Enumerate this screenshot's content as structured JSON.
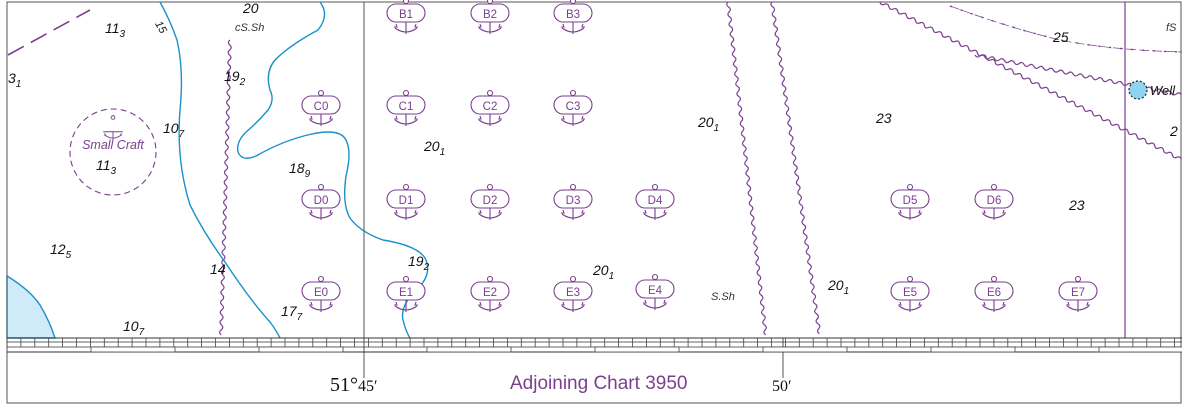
{
  "colors": {
    "water": "#ffffff",
    "shallow": "#cfeaf8",
    "depth_contour": "#1a92c9",
    "anchorage": "#7a3f8f",
    "well": "#8fd3f2"
  },
  "soundings": [
    {
      "main": "11",
      "sub": "3"
    },
    {
      "main": "3",
      "sub": "1"
    },
    {
      "main": "10",
      "sub": "7"
    },
    {
      "main": "11",
      "sub": "3"
    },
    {
      "main": "19",
      "sub": "2"
    },
    {
      "main": "18",
      "sub": "9"
    },
    {
      "main": "20",
      "sub": "1"
    },
    {
      "main": "20",
      "sub": "1"
    },
    {
      "main": "23",
      "sub": ""
    },
    {
      "main": "2",
      "sub": ""
    },
    {
      "main": "23",
      "sub": ""
    },
    {
      "main": "25",
      "sub": ""
    },
    {
      "main": "12",
      "sub": "5"
    },
    {
      "main": "14",
      "sub": ""
    },
    {
      "main": "19",
      "sub": "2"
    },
    {
      "main": "20",
      "sub": "1"
    },
    {
      "main": "20",
      "sub": "1"
    },
    {
      "main": "17",
      "sub": "7"
    },
    {
      "main": "10",
      "sub": "7"
    },
    {
      "main": "20",
      "sub": ""
    }
  ],
  "contour_labels": [
    "15"
  ],
  "bottom_labels": [
    "cS.Sh",
    "S.Sh",
    "fS"
  ],
  "small_craft_label": "Small Craft",
  "well_label": "Well",
  "anchor_berths": [
    "B1",
    "B2",
    "B3",
    "C0",
    "C1",
    "C2",
    "C3",
    "D0",
    "D1",
    "D2",
    "D3",
    "D4",
    "D5",
    "D6",
    "E0",
    "E1",
    "E2",
    "E3",
    "E4",
    "E5",
    "E6",
    "E7"
  ],
  "border": {
    "longitudes": [
      {
        "deg": "51°",
        "min": "45′"
      },
      {
        "deg": "",
        "min": "50′"
      }
    ],
    "adjoining_chart": "Adjoining Chart 3950"
  }
}
